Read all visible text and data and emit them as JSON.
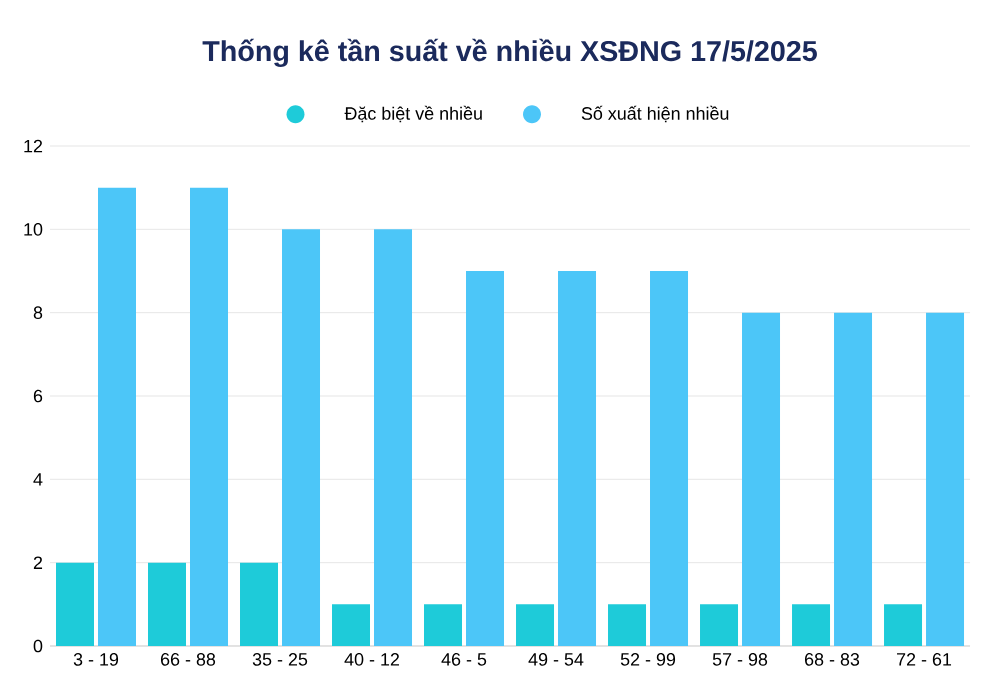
{
  "chart_data": {
    "type": "bar",
    "title": "Thống kê tần suất về nhiều XSĐNG 17/5/2025",
    "categories": [
      "3 - 19",
      "66 - 88",
      "35 - 25",
      "40 - 12",
      "46 - 5",
      "49 - 54",
      "52 - 99",
      "57 - 98",
      "68 - 83",
      "72 - 61"
    ],
    "series": [
      {
        "name": "Đặc biệt về nhiều",
        "color": "#1ecbd9",
        "values": [
          2,
          2,
          2,
          1,
          1,
          1,
          1,
          1,
          1,
          1
        ]
      },
      {
        "name": "Số xuất hiện nhiều",
        "color": "#4cc6f8",
        "values": [
          11,
          11,
          10,
          10,
          9,
          9,
          9,
          8,
          8,
          8
        ]
      }
    ],
    "ylim": [
      0,
      12
    ],
    "yticks": [
      0,
      2,
      4,
      6,
      8,
      10,
      12
    ],
    "grid": "y",
    "legend": "top"
  }
}
